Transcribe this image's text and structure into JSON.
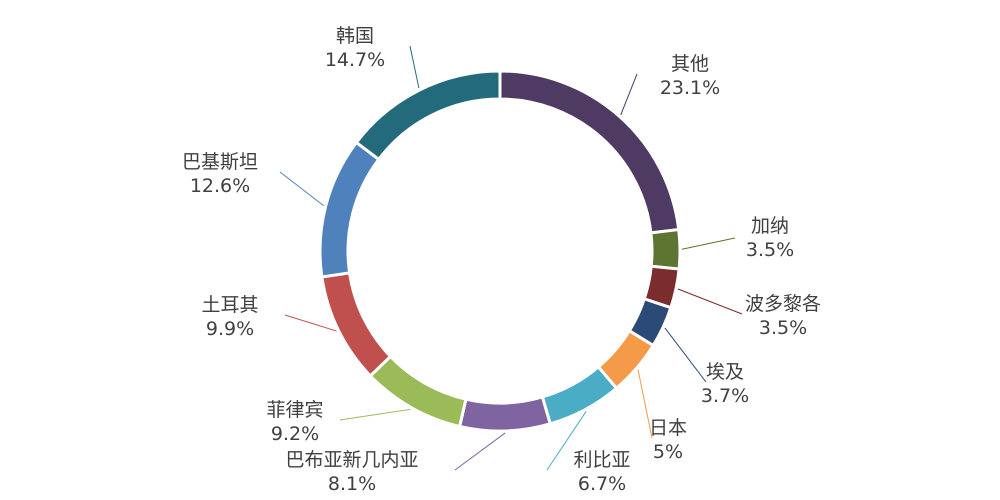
{
  "chart_data": {
    "type": "pie",
    "subtype": "donut",
    "legend": "none",
    "slices": [
      {
        "label": "其他",
        "value": 23.1,
        "value_label": "23.1%",
        "color": "#4e3a63"
      },
      {
        "label": "加纳",
        "value": 3.5,
        "value_label": "3.5%",
        "color": "#5d7530"
      },
      {
        "label": "波多黎各",
        "value": 3.5,
        "value_label": "3.5%",
        "color": "#7b2c2c"
      },
      {
        "label": "埃及",
        "value": 3.7,
        "value_label": "3.7%",
        "color": "#2b4a76"
      },
      {
        "label": "日本",
        "value": 5,
        "value_label": "5%",
        "color": "#f59a48"
      },
      {
        "label": "利比亚",
        "value": 6.7,
        "value_label": "6.7%",
        "color": "#4bacc6"
      },
      {
        "label": "巴布亚新几内亚",
        "value": 8.1,
        "value_label": "8.1%",
        "color": "#8064a2"
      },
      {
        "label": "菲律宾",
        "value": 9.2,
        "value_label": "9.2%",
        "color": "#9bbb59"
      },
      {
        "label": "土耳其",
        "value": 9.9,
        "value_label": "9.9%",
        "color": "#c0504d"
      },
      {
        "label": "巴基斯坦",
        "value": 12.6,
        "value_label": "12.6%",
        "color": "#4f81bd"
      },
      {
        "label": "韩国",
        "value": 14.7,
        "value_label": "14.7%",
        "color": "#236a7c"
      }
    ]
  }
}
